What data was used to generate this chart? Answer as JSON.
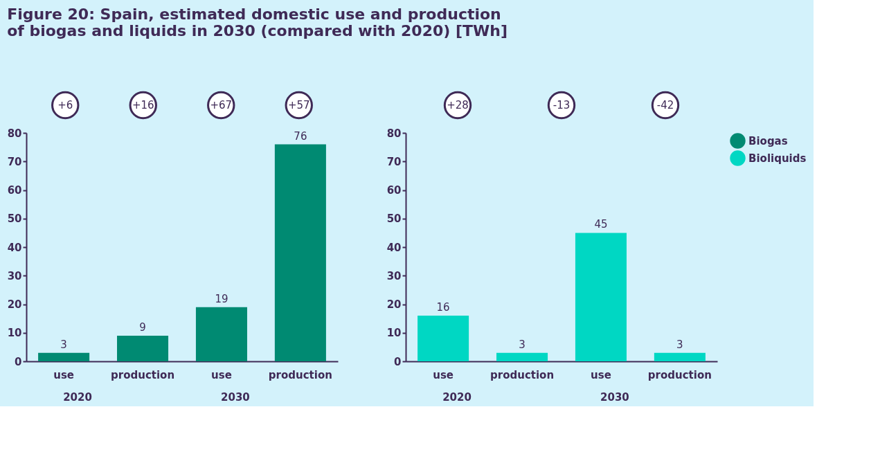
{
  "chart_data": [
    {
      "type": "bar",
      "title": "Figure 20: Spain, estimated domestic use and production of biogas and liquids in 2030 (compared with 2020) [TWh]",
      "categories": [
        "use",
        "production",
        "use",
        "production"
      ],
      "series": [
        {
          "name": "Biogas",
          "color": "#008a72",
          "values": [
            3,
            9,
            19,
            76
          ]
        }
      ],
      "ylim": [
        0,
        80
      ],
      "yticks": [
        0,
        10,
        20,
        30,
        40,
        50,
        60,
        70,
        80
      ],
      "data_labels": true,
      "legend": "top right",
      "annotations": [
        "2020",
        "2030",
        "+6",
        "+16",
        "+67",
        "+57"
      ]
    },
    {
      "type": "bar",
      "categories": [
        "use",
        "production",
        "use",
        "production"
      ],
      "series": [
        {
          "name": "Bioliquids",
          "color": "#00d7c3",
          "values": [
            16,
            3,
            45,
            3
          ]
        }
      ],
      "ylim": [
        0,
        80
      ],
      "yticks": [
        0,
        10,
        20,
        30,
        40,
        50,
        60,
        70,
        80
      ],
      "data_labels": true,
      "legend": "top right",
      "annotations": [
        "2020",
        "2030",
        "+28",
        "-13",
        "-42"
      ]
    }
  ]
}
